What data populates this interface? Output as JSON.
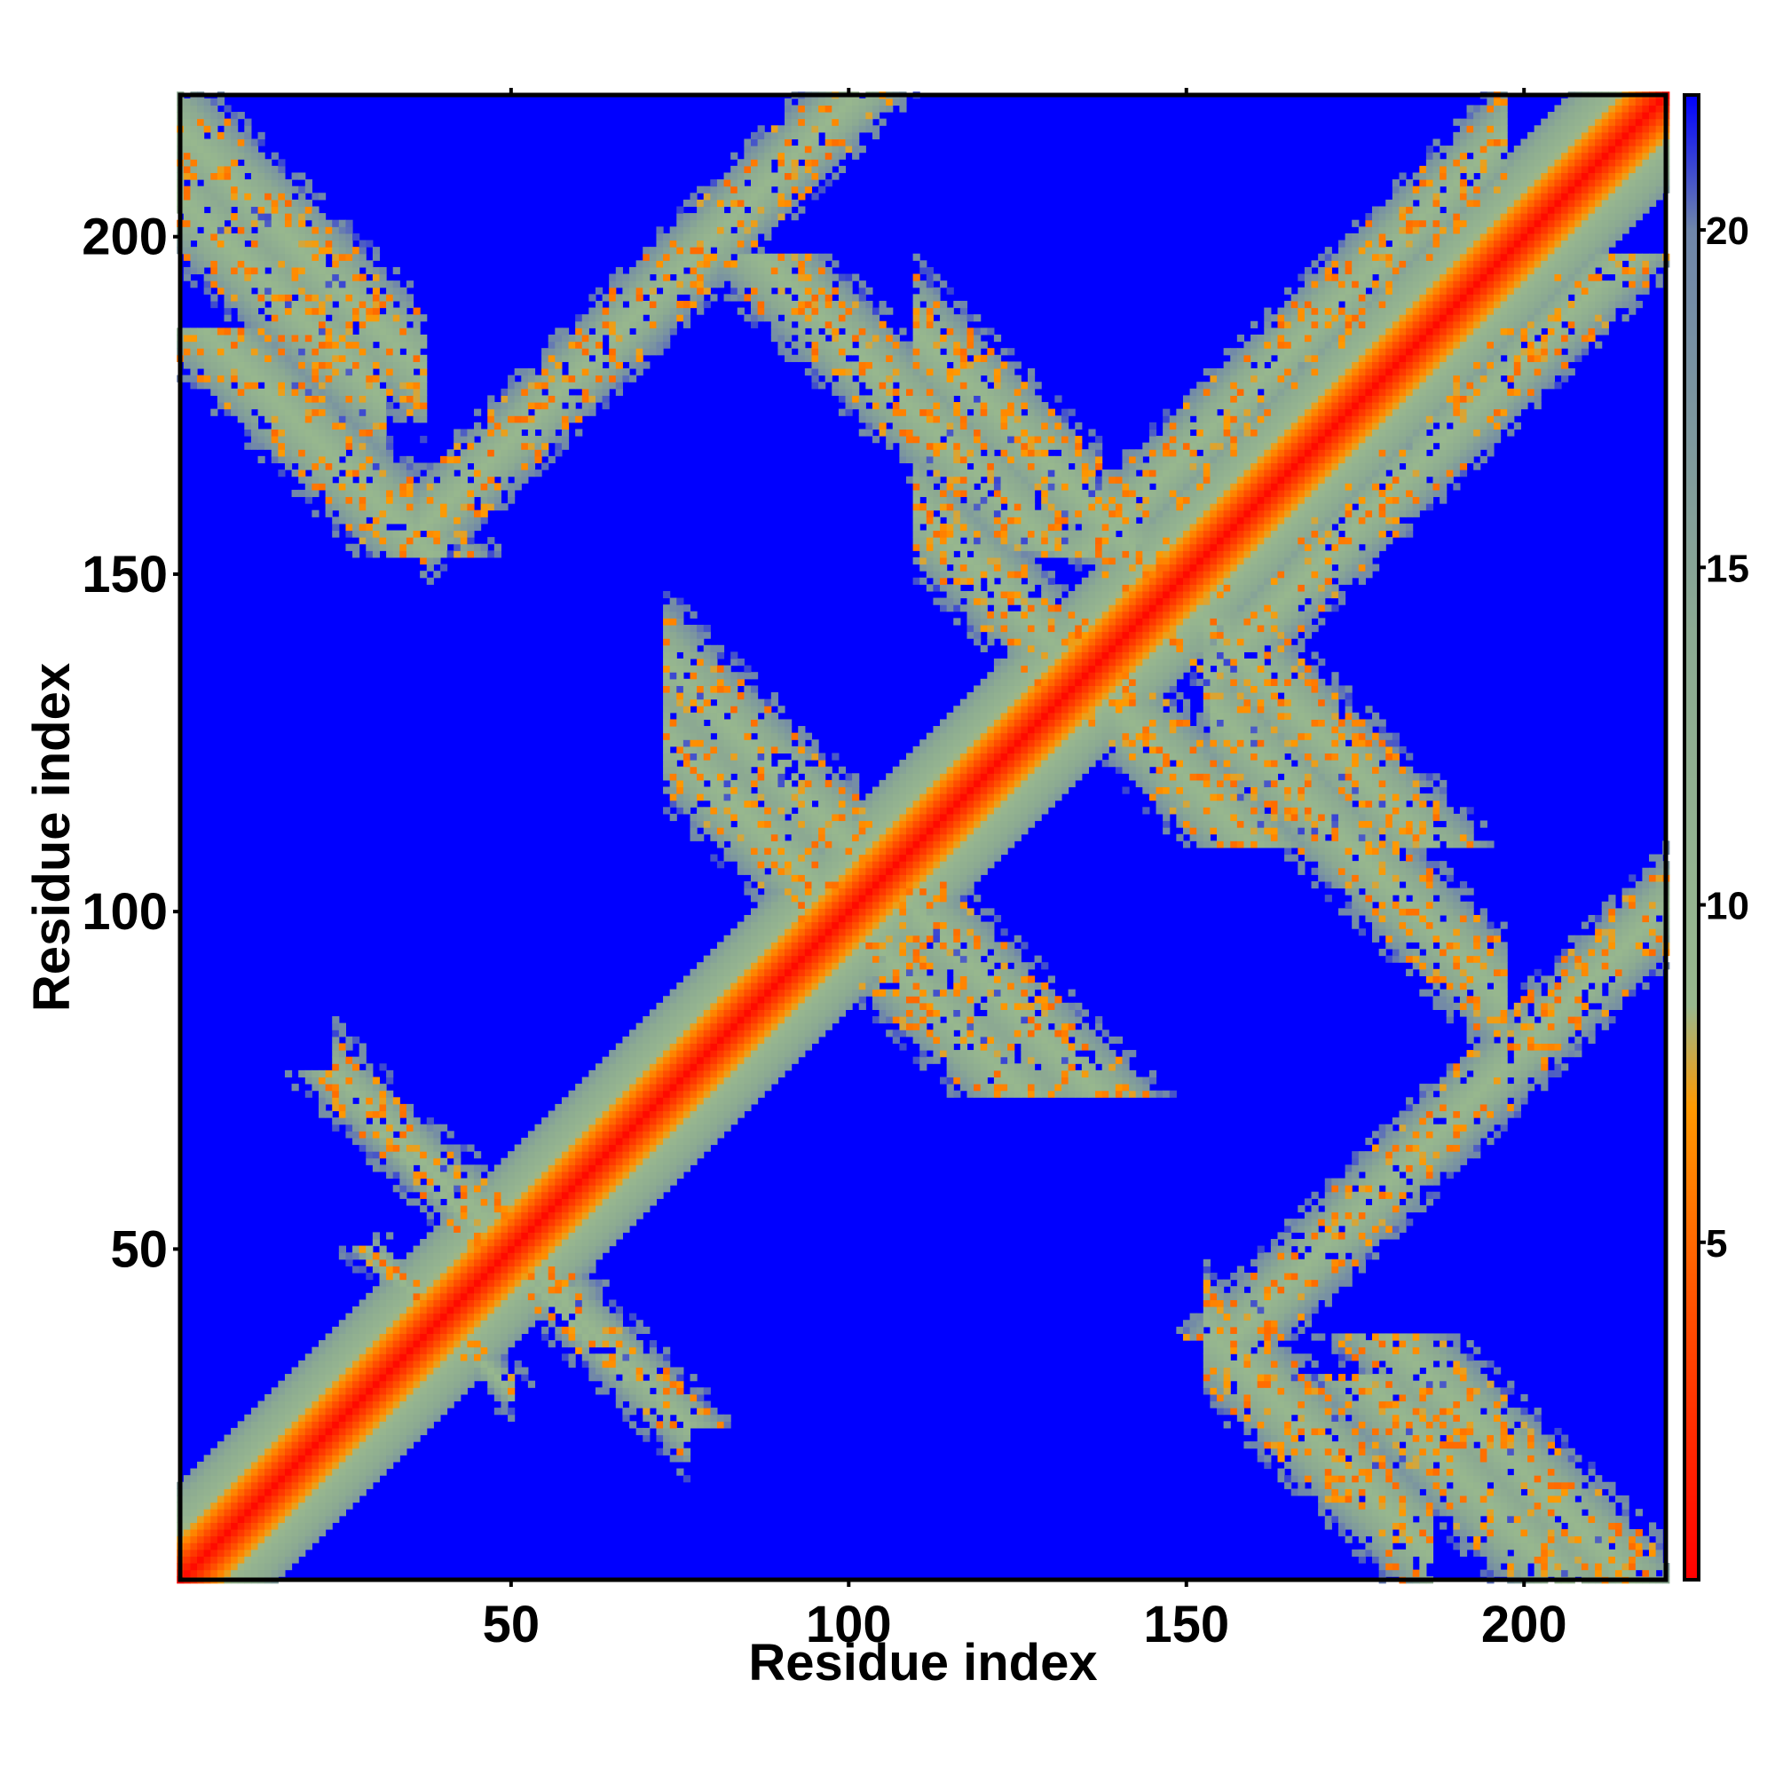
{
  "chart_data": {
    "type": "heatmap",
    "title": "",
    "xlabel": "Residue index",
    "ylabel": "Residue index",
    "xlim": [
      1,
      221
    ],
    "ylim": [
      1,
      221
    ],
    "x_ticks": [
      50,
      100,
      150,
      200
    ],
    "y_ticks": [
      50,
      100,
      150,
      200
    ],
    "colorbar": {
      "range": [
        0,
        22
      ],
      "ticks": [
        5,
        10,
        15,
        20
      ],
      "stops": [
        {
          "value": 0,
          "color": "#ff0000"
        },
        {
          "value": 4,
          "color": "#ff5000"
        },
        {
          "value": 7,
          "color": "#ff9900"
        },
        {
          "value": 8.5,
          "color": "#98b88e"
        },
        {
          "value": 14,
          "color": "#8caa92"
        },
        {
          "value": 20,
          "color": "#6f86aa"
        },
        {
          "value": 22,
          "color": "#0000ff"
        }
      ]
    },
    "background_value": 22,
    "colors": {
      "background": "#0000ff",
      "near": "#ff0000",
      "mid": "#ff9900",
      "far": "#98b88e"
    },
    "contact_bands": [
      {
        "type": "diagonal",
        "from": 1,
        "to": 221,
        "half_width": 10
      },
      {
        "type": "anti",
        "sum": 217,
        "x_range": [
          1,
          37
        ],
        "half_width": 6
      },
      {
        "type": "anti",
        "sum": 207,
        "x_range": [
          1,
          31
        ],
        "half_width": 6
      },
      {
        "type": "anti",
        "sum": 210,
        "x_range": [
          73,
          108
        ],
        "half_width": 6
      },
      {
        "type": "anti",
        "sum": 296,
        "x_range": [
          110,
          148
        ],
        "half_width": 6
      },
      {
        "type": "anti",
        "sum": 284,
        "x_range": [
          154,
          197
        ],
        "half_width": 6
      },
      {
        "type": "anti",
        "sum": 199,
        "x_range": [
          73,
          105
        ],
        "half_width": 6
      },
      {
        "type": "anti",
        "sum": 191,
        "x_range": [
          153,
          186
        ],
        "half_width": 6
      },
      {
        "type": "anti",
        "sum": 270,
        "x_range": [
          110,
          147
        ],
        "half_width": 6
      },
      {
        "type": "anti",
        "sum": 98,
        "x_range": [
          41,
          67
        ],
        "half_width": 2
      },
      {
        "type": "anti",
        "sum": 79,
        "x_range": [
          30,
          50
        ],
        "half_width": 2
      },
      {
        "type": "anti",
        "sum": 100,
        "x_range": [
          24,
          76
        ],
        "half_width": 4
      },
      {
        "type": "anti",
        "sum": 101,
        "x_range": [
          44,
          58
        ],
        "half_width": 4
      },
      {
        "type": "parallel",
        "offset": 120,
        "x_range": [
          37,
          110
        ],
        "half_width": 5
      },
      {
        "type": "parallel",
        "offset": 18,
        "x_range": [
          153,
          197
        ],
        "half_width": 5
      }
    ]
  }
}
